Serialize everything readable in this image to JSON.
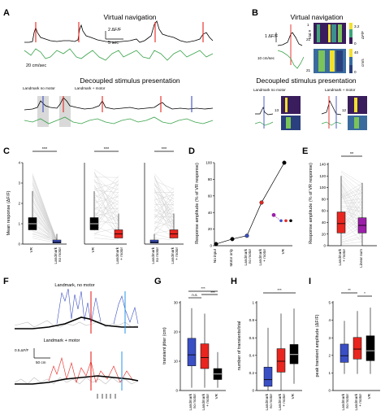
{
  "panels": {
    "A": {
      "label": "A",
      "title_top": "Virtual navigation",
      "title_bottom": "Decoupled stimulus presentation",
      "scale_df": "2 ΔF/F",
      "scale_time": "5 sec",
      "speed_label": "20 cm/sec",
      "landmark_no_motor": "Landmark\nno motor",
      "landmark_motor": "Landmark\n+ motor"
    },
    "B": {
      "label": "B",
      "title_top": "Virtual navigation",
      "title_bottom": "Decoupled stimulus presentation",
      "scale_df": "1 ΔF/F",
      "speed_label": "10 cm/sec",
      "trial_label": "trial #",
      "trial_top": "1",
      "trial_bottom": "21",
      "cb_top_vals": [
        "3.2",
        "0"
      ],
      "cb_top_unit": "ΔF/F",
      "cb_bot_vals": [
        "40",
        "0"
      ],
      "cb_bot_unit": "cm/s",
      "landmark_no_motor": "Landmark\nno motor",
      "landmark_motor": "Landmark\n+ motor",
      "trial_mid": "13",
      "trial_mid2": "12"
    },
    "C": {
      "label": "C",
      "ylabel": "Mean response (ΔF/F)",
      "yticks": [
        "0",
        "1",
        "2",
        "3",
        "4"
      ],
      "sig": "***",
      "categories": [
        "VR",
        "Landmark\nno motor",
        "VR",
        "Landmark\n+ motor",
        "VR",
        "Landmark\nno motor",
        "Landmark\n+ motor"
      ]
    },
    "D": {
      "label": "D",
      "ylabel": "Response amplitude\n(% of VR response)",
      "yticks": [
        "0",
        "20",
        "40",
        "60",
        "80",
        "100"
      ],
      "categories": [
        "No input",
        "Motor only",
        "Landmark\nno motor",
        "Landmark\n+ motor",
        "VR"
      ]
    },
    "E": {
      "label": "E",
      "ylabel": "Response amplitude\n(% of VR response)",
      "yticks": [
        "0",
        "20",
        "40",
        "60",
        "80",
        "100",
        "120",
        "140"
      ],
      "sig": "**",
      "categories": [
        "Landmark\n+ motor",
        "Linear sum"
      ]
    },
    "F": {
      "label": "F",
      "title_top": "Landmark, no motor",
      "title_bottom": "Landmark + motor",
      "scale_df": "0.5 ΔF/F",
      "scale_dist": "50 cm"
    },
    "G": {
      "label": "G",
      "ylabel": "transient jitter (cm)",
      "yticks": [
        "0",
        "10",
        "20",
        "30"
      ],
      "sig": [
        "n.s.",
        "***",
        "***"
      ],
      "categories": [
        "Landmark\nno motor",
        "Landmark\n+ motor",
        "VR"
      ]
    },
    "H": {
      "label": "H",
      "ylabel": "number of transients/trial",
      "yticks": [
        "0",
        "0.2",
        "0.4",
        "0.6",
        "0.8",
        "1"
      ],
      "sig": "***",
      "categories": [
        "Landmark\nno motor",
        "Landmark\n+ motor",
        "VR"
      ]
    },
    "I": {
      "label": "I",
      "ylabel": "peak transient amplitude (ΔF/F)",
      "yticks": [
        "0",
        "1",
        "2",
        "3",
        "4",
        "5"
      ],
      "sig": [
        "**",
        "*"
      ],
      "categories": [
        "Landmark\nno motor",
        "Landmark\n+ motor",
        "VR"
      ]
    }
  },
  "colors": {
    "blue": "#3b4fc4",
    "red": "#e8251f",
    "purple": "#9b1fa8",
    "green": "#3aa34a",
    "black": "#000000",
    "grey": "#bdbdbd"
  },
  "chart_data": [
    {
      "type": "line",
      "panel": "D",
      "categories": [
        "No input",
        "Motor only",
        "Landmark\nno motor",
        "Landmark\n+ motor",
        "VR"
      ],
      "values": [
        2,
        8,
        12,
        52,
        100
      ],
      "ylim": [
        0,
        100
      ],
      "extra_points": [
        {
          "category": "Landmark\n+ motor",
          "value": 37,
          "color": "purple"
        }
      ]
    },
    {
      "type": "bar",
      "panel": "E",
      "categories": [
        "Landmark\n+ motor",
        "Linear sum"
      ],
      "series": [
        {
          "stat": "q1",
          "values": [
            22,
            22
          ]
        },
        {
          "stat": "median",
          "values": [
            38,
            35
          ]
        },
        {
          "stat": "q3",
          "values": [
            58,
            48
          ]
        },
        {
          "stat": "whisker_low",
          "values": [
            0,
            0
          ]
        },
        {
          "stat": "whisker_high",
          "values": [
            120,
            108
          ]
        }
      ],
      "ylim": [
        0,
        140
      ]
    },
    {
      "type": "bar",
      "panel": "G",
      "categories": [
        "Landmark\nno motor",
        "Landmark\n+ motor",
        "VR"
      ],
      "series": [
        {
          "stat": "q1",
          "values": [
            9,
            8,
            4
          ]
        },
        {
          "stat": "median",
          "values": [
            13,
            12,
            6
          ]
        },
        {
          "stat": "q3",
          "values": [
            19,
            17,
            8
          ]
        },
        {
          "stat": "whisker_low",
          "values": [
            1,
            1,
            1
          ]
        },
        {
          "stat": "whisker_high",
          "values": [
            30,
            28,
            14
          ]
        }
      ],
      "ylim": [
        0,
        32
      ]
    },
    {
      "type": "bar",
      "panel": "H",
      "categories": [
        "Landmark\nno motor",
        "Landmark\n+ motor",
        "VR"
      ],
      "series": [
        {
          "stat": "q1",
          "values": [
            0.05,
            0.22,
            0.32
          ]
        },
        {
          "stat": "median",
          "values": [
            0.13,
            0.35,
            0.43
          ]
        },
        {
          "stat": "q3",
          "values": [
            0.28,
            0.5,
            0.55
          ]
        },
        {
          "stat": "whisker_low",
          "values": [
            0,
            0,
            0.08
          ]
        },
        {
          "stat": "whisker_high",
          "values": [
            0.75,
            0.92,
            0.98
          ]
        }
      ],
      "ylim": [
        0,
        1.05
      ]
    },
    {
      "type": "bar",
      "panel": "I",
      "categories": [
        "Landmark\nno motor",
        "Landmark\n+ motor",
        "VR"
      ],
      "series": [
        {
          "stat": "q1",
          "values": [
            1.7,
            1.9,
            1.8
          ]
        },
        {
          "stat": "median",
          "values": [
            2.1,
            2.5,
            2.4
          ]
        },
        {
          "stat": "q3",
          "values": [
            2.8,
            3.2,
            3.3
          ]
        },
        {
          "stat": "whisker_low",
          "values": [
            1,
            1,
            1
          ]
        },
        {
          "stat": "whisker_high",
          "values": [
            4.2,
            4.8,
            5.0
          ]
        }
      ],
      "ylim": [
        0,
        5.3
      ]
    },
    {
      "type": "bar",
      "panel": "C",
      "categories": [
        "VR",
        "Landmark\nno motor",
        "VR",
        "Landmark\n+ motor",
        "VR",
        "Landmark\nno motor",
        "Landmark\n+ motor"
      ],
      "series": [
        {
          "stat": "q1",
          "values": [
            0.7,
            0.05,
            0.7,
            0.3,
            0.7,
            0.05,
            0.3
          ]
        },
        {
          "stat": "median",
          "values": [
            1.0,
            0.1,
            1.0,
            0.5,
            1.0,
            0.1,
            0.5
          ]
        },
        {
          "stat": "q3",
          "values": [
            1.3,
            0.2,
            1.3,
            0.7,
            1.3,
            0.2,
            0.7
          ]
        },
        {
          "stat": "whisker_high",
          "values": [
            2.6,
            0.5,
            2.6,
            1.5,
            2.6,
            0.5,
            1.5
          ]
        }
      ],
      "ylim": [
        0,
        4
      ]
    }
  ]
}
